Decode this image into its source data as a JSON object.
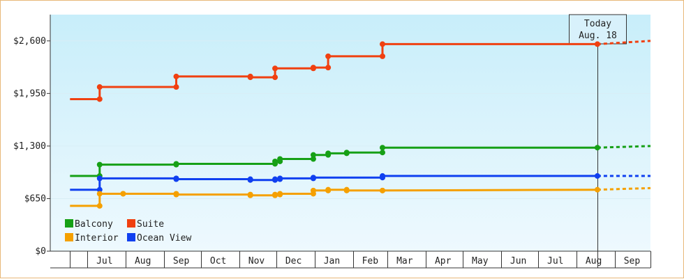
{
  "chart_data": {
    "type": "line",
    "step": true,
    "colors": {
      "Balcony": "#16a016",
      "Suite": "#f04010",
      "Interior": "#f5a000",
      "Ocean View": "#1040f0"
    },
    "y_range": [
      0,
      2925
    ],
    "y_ticks": [
      {
        "value": 0,
        "label": "$0"
      },
      {
        "value": 650,
        "label": "$650"
      },
      {
        "value": 1300,
        "label": "$1,300"
      },
      {
        "value": 1950,
        "label": "$1,950"
      },
      {
        "value": 2600,
        "label": "$2,600"
      }
    ],
    "x_start": "2024-06-01",
    "x_end": "2025-09-30",
    "month_boundaries": [
      "2024-06-17",
      "2024-07-01",
      "2024-08-01",
      "2024-09-01",
      "2024-10-01",
      "2024-11-01",
      "2024-12-01",
      "2025-01-01",
      "2025-02-01",
      "2025-03-01",
      "2025-04-01",
      "2025-05-01",
      "2025-06-01",
      "2025-07-01",
      "2025-08-01",
      "2025-09-01",
      "2025-09-30"
    ],
    "x_labels": [
      {
        "date": "2024-07-15",
        "label": "Jul"
      },
      {
        "date": "2024-08-15",
        "label": "Aug"
      },
      {
        "date": "2024-09-15",
        "label": "Sep"
      },
      {
        "date": "2024-10-15",
        "label": "Oct"
      },
      {
        "date": "2024-11-15",
        "label": "Nov"
      },
      {
        "date": "2024-12-15",
        "label": "Dec"
      },
      {
        "date": "2025-01-15",
        "label": "Jan"
      },
      {
        "date": "2025-02-15",
        "label": "Feb"
      },
      {
        "date": "2025-03-15",
        "label": "Mar"
      },
      {
        "date": "2025-04-15",
        "label": "Apr"
      },
      {
        "date": "2025-05-15",
        "label": "May"
      },
      {
        "date": "2025-06-15",
        "label": "Jun"
      },
      {
        "date": "2025-07-15",
        "label": "Jul"
      },
      {
        "date": "2025-08-15",
        "label": "Aug"
      },
      {
        "date": "2025-09-15",
        "label": "Sep"
      }
    ],
    "today": {
      "date": "2025-08-18",
      "line1": "Today",
      "line2": "Aug. 18"
    },
    "projection_end": "2025-09-30",
    "legend": [
      "Balcony",
      "Suite",
      "Interior",
      "Ocean View"
    ],
    "series": [
      {
        "name": "Suite",
        "points": [
          {
            "date": "2024-06-17",
            "value": 1880
          },
          {
            "date": "2024-07-11",
            "value": 1880
          },
          {
            "date": "2024-07-11",
            "value": 2030
          },
          {
            "date": "2024-09-11",
            "value": 2030
          },
          {
            "date": "2024-09-11",
            "value": 2160
          },
          {
            "date": "2024-11-10",
            "value": 2160
          },
          {
            "date": "2024-11-10",
            "value": 2150
          },
          {
            "date": "2024-11-30",
            "value": 2150
          },
          {
            "date": "2024-11-30",
            "value": 2260
          },
          {
            "date": "2024-12-31",
            "value": 2260
          },
          {
            "date": "2024-12-31",
            "value": 2270
          },
          {
            "date": "2025-01-12",
            "value": 2270
          },
          {
            "date": "2025-01-12",
            "value": 2410
          },
          {
            "date": "2025-02-25",
            "value": 2410
          },
          {
            "date": "2025-02-25",
            "value": 2560
          },
          {
            "date": "2025-08-18",
            "value": 2560
          }
        ],
        "projection": 2600
      },
      {
        "name": "Balcony",
        "points": [
          {
            "date": "2024-06-17",
            "value": 930
          },
          {
            "date": "2024-07-11",
            "value": 930
          },
          {
            "date": "2024-07-11",
            "value": 1070
          },
          {
            "date": "2024-09-11",
            "value": 1070
          },
          {
            "date": "2024-09-11",
            "value": 1080
          },
          {
            "date": "2024-11-30",
            "value": 1080
          },
          {
            "date": "2024-11-30",
            "value": 1110
          },
          {
            "date": "2024-12-04",
            "value": 1110
          },
          {
            "date": "2024-12-04",
            "value": 1140
          },
          {
            "date": "2024-12-31",
            "value": 1140
          },
          {
            "date": "2024-12-31",
            "value": 1190
          },
          {
            "date": "2025-01-12",
            "value": 1190
          },
          {
            "date": "2025-01-12",
            "value": 1210
          },
          {
            "date": "2025-01-27",
            "value": 1210
          },
          {
            "date": "2025-01-27",
            "value": 1220
          },
          {
            "date": "2025-02-25",
            "value": 1220
          },
          {
            "date": "2025-02-25",
            "value": 1280
          },
          {
            "date": "2025-08-18",
            "value": 1280
          }
        ],
        "projection": 1300
      },
      {
        "name": "Ocean View",
        "points": [
          {
            "date": "2024-06-17",
            "value": 760
          },
          {
            "date": "2024-07-11",
            "value": 760
          },
          {
            "date": "2024-07-11",
            "value": 900
          },
          {
            "date": "2024-09-11",
            "value": 900
          },
          {
            "date": "2024-09-11",
            "value": 890
          },
          {
            "date": "2024-11-10",
            "value": 890
          },
          {
            "date": "2024-11-10",
            "value": 880
          },
          {
            "date": "2024-11-30",
            "value": 880
          },
          {
            "date": "2024-11-30",
            "value": 890
          },
          {
            "date": "2024-12-04",
            "value": 890
          },
          {
            "date": "2024-12-04",
            "value": 900
          },
          {
            "date": "2024-12-31",
            "value": 900
          },
          {
            "date": "2024-12-31",
            "value": 910
          },
          {
            "date": "2025-02-25",
            "value": 910
          },
          {
            "date": "2025-02-25",
            "value": 930
          },
          {
            "date": "2025-08-18",
            "value": 930
          }
        ],
        "projection": 930
      },
      {
        "name": "Interior",
        "points": [
          {
            "date": "2024-06-17",
            "value": 560
          },
          {
            "date": "2024-07-11",
            "value": 560
          },
          {
            "date": "2024-07-11",
            "value": 710
          },
          {
            "date": "2024-07-30",
            "value": 710
          },
          {
            "date": "2024-07-30",
            "value": 710
          },
          {
            "date": "2024-09-11",
            "value": 710
          },
          {
            "date": "2024-09-11",
            "value": 700
          },
          {
            "date": "2024-11-10",
            "value": 700
          },
          {
            "date": "2024-11-10",
            "value": 690
          },
          {
            "date": "2024-11-30",
            "value": 690
          },
          {
            "date": "2024-11-30",
            "value": 700
          },
          {
            "date": "2024-12-04",
            "value": 700
          },
          {
            "date": "2024-12-04",
            "value": 710
          },
          {
            "date": "2024-12-31",
            "value": 710
          },
          {
            "date": "2024-12-31",
            "value": 750
          },
          {
            "date": "2025-01-12",
            "value": 750
          },
          {
            "date": "2025-01-12",
            "value": 760
          },
          {
            "date": "2025-01-27",
            "value": 760
          },
          {
            "date": "2025-01-27",
            "value": 750
          },
          {
            "date": "2025-02-25",
            "value": 750
          },
          {
            "date": "2025-02-25",
            "value": 750
          },
          {
            "date": "2025-08-18",
            "value": 760
          }
        ],
        "projection": 780
      }
    ]
  }
}
